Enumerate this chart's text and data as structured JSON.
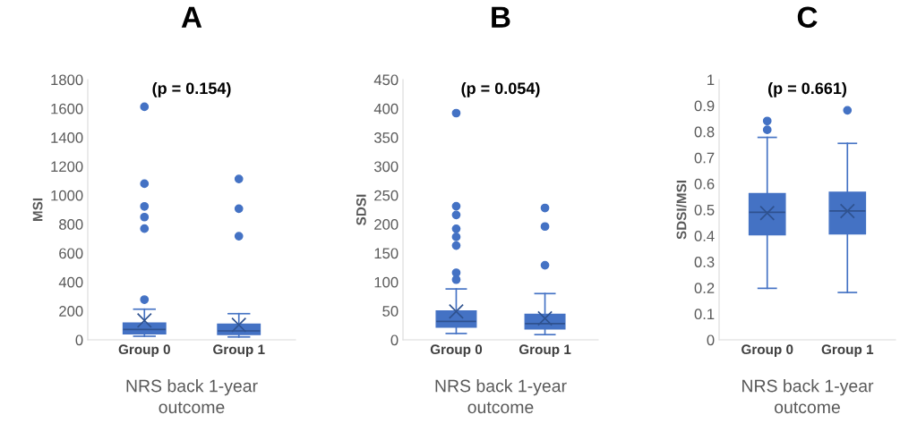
{
  "chart_data": [
    {
      "type": "box",
      "title": "A",
      "ylabel": "MSI",
      "xlabel": "NRS back 1-year\noutcome",
      "annotations": [
        "(p = 0.154)"
      ],
      "categories": [
        "Group 0",
        "Group 1"
      ],
      "color": "#4472c4",
      "ylim": [
        0,
        1800
      ],
      "yticks": [
        0,
        200,
        400,
        600,
        800,
        1000,
        1200,
        1400,
        1600,
        1800
      ],
      "grid": false,
      "marker": "circle",
      "boxes": [
        {
          "low": 25,
          "q1": 41,
          "median": 72,
          "q3": 117,
          "high": 212,
          "mean": 134,
          "outliers": [
            1612,
            1080,
            923,
            849,
            769,
            278
          ]
        },
        {
          "low": 20,
          "q1": 37,
          "median": 62,
          "q3": 109,
          "high": 181,
          "mean": 103,
          "outliers": [
            1113,
            907,
            717
          ]
        }
      ]
    },
    {
      "type": "box",
      "title": "B",
      "ylabel": "SDSI",
      "xlabel": "NRS back 1-year\noutcome",
      "annotations": [
        "(p = 0.054)"
      ],
      "categories": [
        "Group 0",
        "Group 1"
      ],
      "color": "#4472c4",
      "ylim": [
        0,
        450
      ],
      "yticks": [
        0,
        50,
        100,
        150,
        200,
        250,
        300,
        350,
        400,
        450
      ],
      "grid": false,
      "marker": "circle",
      "boxes": [
        {
          "low": 11,
          "q1": 22,
          "median": 32,
          "q3": 50,
          "high": 88,
          "mean": 49,
          "outliers": [
            392,
            231,
            216,
            192,
            178,
            163,
            116,
            104
          ]
        },
        {
          "low": 9,
          "q1": 19,
          "median": 28,
          "q3": 44,
          "high": 80,
          "mean": 37,
          "outliers": [
            228,
            196,
            129
          ]
        }
      ]
    },
    {
      "type": "box",
      "title": "C",
      "ylabel": "SDSI/MSI",
      "xlabel": "NRS back 1-year\noutcome",
      "annotations": [
        "(p = 0.661)"
      ],
      "categories": [
        "Group 0",
        "Group 1"
      ],
      "color": "#4472c4",
      "ylim": [
        0,
        1
      ],
      "yticks": [
        0,
        0.1,
        0.2,
        0.3,
        0.4,
        0.5,
        0.6,
        0.7,
        0.8,
        0.9,
        1
      ],
      "grid": false,
      "marker": "circle",
      "boxes": [
        {
          "low": 0.198,
          "q1": 0.404,
          "median": 0.49,
          "q3": 0.562,
          "high": 0.778,
          "mean": 0.487,
          "outliers": [
            0.841,
            0.807
          ]
        },
        {
          "low": 0.182,
          "q1": 0.407,
          "median": 0.495,
          "q3": 0.567,
          "high": 0.755,
          "mean": 0.495,
          "outliers": [
            0.882
          ]
        }
      ]
    }
  ]
}
